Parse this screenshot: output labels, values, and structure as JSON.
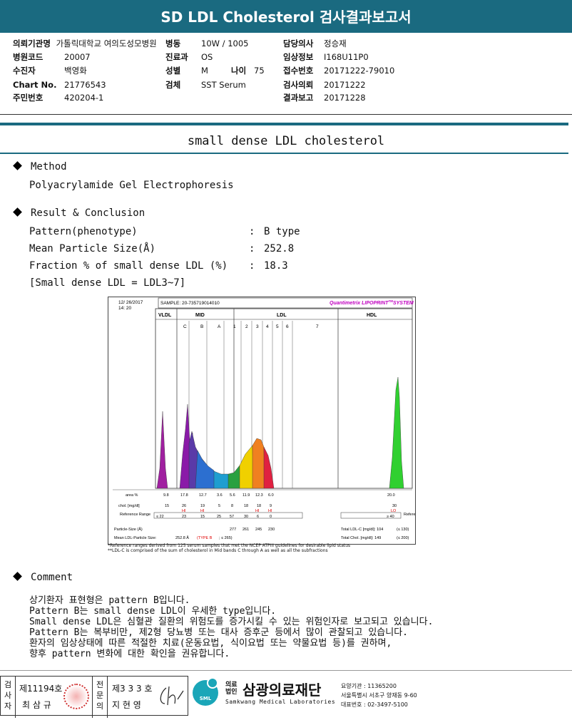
{
  "header": {
    "title": "SD LDL Cholesterol 검사결과보고서"
  },
  "info": {
    "col1": [
      {
        "label": "의뢰기관명",
        "value": "가톨릭대학교 여의도성모병원"
      },
      {
        "label": "병원코드",
        "value": "20007"
      },
      {
        "label": "수진자",
        "value": "백영화"
      },
      {
        "label": "Chart No.",
        "value": "21776543"
      },
      {
        "label": "주민번호",
        "value": "420204-1"
      }
    ],
    "col2": [
      {
        "label": "병동",
        "value": "10W / 1005"
      },
      {
        "label": "진료과",
        "value": "OS"
      },
      {
        "label": "성별",
        "value": "M"
      },
      {
        "label": "검체",
        "value": "SST Serum"
      }
    ],
    "age": {
      "label": "나이",
      "value": "75"
    },
    "col3": [
      {
        "label": "담당의사",
        "value": "정승재"
      },
      {
        "label": "임상정보",
        "value": "I168U11P0"
      },
      {
        "label": "접수번호",
        "value": "20171222-79010"
      },
      {
        "label": "검사의뢰",
        "value": "20171222"
      },
      {
        "label": "결과보고",
        "value": "20171228"
      }
    ]
  },
  "section_title": "small dense LDL cholesterol",
  "method": {
    "heading": "Method",
    "text": "Polyacrylamide Gel Electrophoresis"
  },
  "result": {
    "heading": "Result & Conclusion",
    "rows": [
      {
        "label": "Pattern(phenotype)",
        "value": "B type"
      },
      {
        "label": "Mean Particle Size(Å)",
        "value": "252.8"
      },
      {
        "label": "Fraction % of small dense LDL (%)",
        "value": "18.3"
      }
    ],
    "note": "[Small dense LDL = LDL3~7]"
  },
  "chart": {
    "date": "12/ 26/2017",
    "time": "14: 20",
    "sample": "SAMPLE:  20-735719014010",
    "system": "Quantimetrix LIPOPRINT",
    "system_tm": "TM",
    "system_suffix": "SYSTEM",
    "bands": [
      "VLDL",
      "MID",
      "LDL",
      "HDL"
    ],
    "sub_bands": [
      "C",
      "B",
      "A",
      "1",
      "2",
      "3",
      "4",
      "5",
      "6",
      "7"
    ],
    "area_label": "area %",
    "area": [
      "9.8",
      "17.8",
      "12.7",
      "3.6",
      "5.6",
      "11.9",
      "12.3",
      "6.0",
      "20.0"
    ],
    "chol_label": "chol. [mg/dl]",
    "chol": [
      "15",
      "26",
      "19",
      "5",
      "8",
      "18",
      "18",
      "9",
      "30"
    ],
    "hi": "HI",
    "lo": "LO",
    "ref_label": "Reference Range",
    "ref": [
      "≤ 22",
      "23",
      "15",
      "25",
      "57",
      "30",
      "6",
      "0",
      "≥ 40"
    ],
    "ps_label": "Particle-Size (Å)",
    "ps": [
      "277",
      "261",
      "245",
      "230"
    ],
    "mean_label": "Mean LDL-Particle Size:",
    "mean_value": "252.8 Å",
    "type_text": "(TYPE B",
    "type_suffix": "; ≤ 265)",
    "total_ldl": "Total LDL-C [mg/dl]:  104",
    "total_ldl_ref": "(≤ 130)",
    "total_chol": "Total Chol. [mg/dl]:  149",
    "total_chol_ref": "(≤ 200)",
    "footnote1": "*Reference ranges derived from 125 serum samples that met the NCEP ATPIII guidelines for desirable lipid status",
    "footnote2": "**LDL-C is comprised of the sum of cholesterol in Mid bands C through A as well as all the subfractions"
  },
  "comment": {
    "heading": "Comment",
    "lines": [
      "상기환자 표현형은 pattern B입니다.",
      "Pattern B는 small dense LDL이 우세한 type입니다.",
      "Small dense LDL은 심혈관 질환의 위험도를 증가시킬 수 있는 위험인자로 보고되고 있습니다.",
      "Pattern B는 복부비만, 제2형 당뇨병 또는 대사 증후군 등에서 많이 관찰되고 있습니다.",
      "환자의 임상상태에 따른 적절한 치료(운동요법, 식이요법 또는 약물요법 등)를 권하며,",
      "향후 pattern 변화에 대한 확인을 권유합니다."
    ]
  },
  "footer": {
    "tester_label": "검사자",
    "tester_no": "제11194호",
    "tester_name": "최 삼 규",
    "doctor_label": "전문의",
    "doctor_no": "제3 3 3 호",
    "doctor_name": "지 현 영",
    "logo_text": "SML",
    "org_prefix": "의료법인",
    "org_name": "삼광의료재단",
    "org_en": "Samkwang Medical Laboratories",
    "code": "요양기관 : 11365200",
    "address": "서울특별시 서초구 양재동 9-60",
    "phone": "대표번호 : 02-3497-5100"
  }
}
